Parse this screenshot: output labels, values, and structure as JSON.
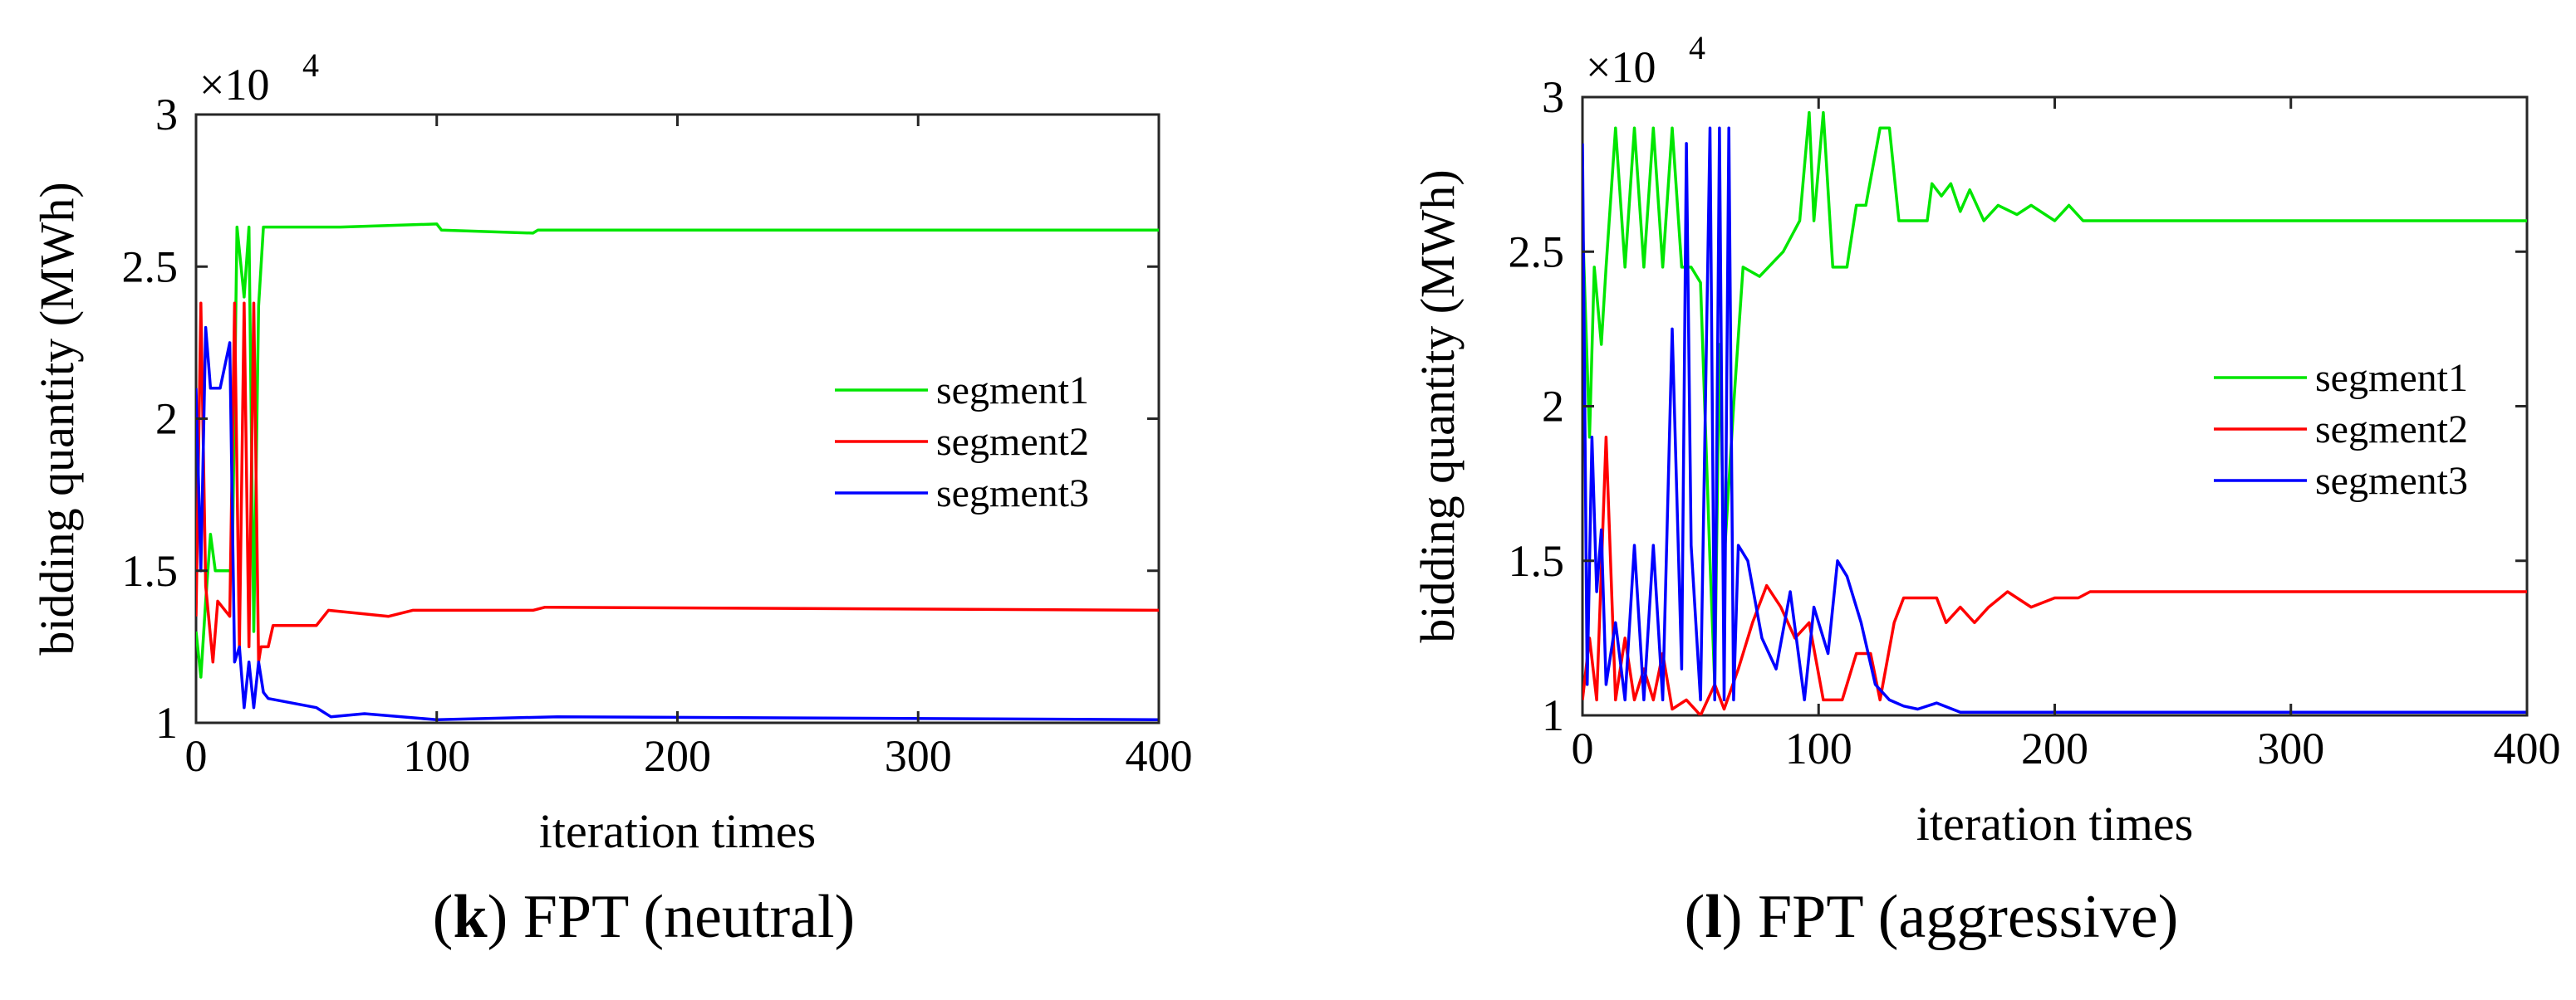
{
  "chart_data": [
    {
      "type": "line",
      "panel_id": "k",
      "panel_suffix": "FPT (neutral)",
      "xlabel": "iteration times",
      "ylabel": "bidding quantity (MWh)",
      "y_exponent_label": "×10",
      "y_exponent_power": "4",
      "xlim": [
        0,
        400
      ],
      "ylim": [
        1,
        3
      ],
      "xticks": [
        0,
        100,
        200,
        300,
        400
      ],
      "yticks": [
        1,
        1.5,
        2,
        2.5,
        3
      ],
      "xtick_labels": [
        "0",
        "100",
        "200",
        "300",
        "400"
      ],
      "ytick_labels": [
        "1",
        "1.5",
        "2",
        "2.5",
        "3"
      ],
      "legend_position": "center-right",
      "series": [
        {
          "name": "segment1",
          "color": "#00e600",
          "points": [
            [
              0,
              1.3
            ],
            [
              2,
              1.15
            ],
            [
              4,
              1.4
            ],
            [
              6,
              1.62
            ],
            [
              8,
              1.5
            ],
            [
              15,
              1.5
            ],
            [
              17,
              2.63
            ],
            [
              20,
              2.4
            ],
            [
              22,
              2.63
            ],
            [
              24,
              1.3
            ],
            [
              26,
              2.37
            ],
            [
              28,
              2.63
            ],
            [
              60,
              2.63
            ],
            [
              100,
              2.64
            ],
            [
              102,
              2.62
            ],
            [
              140,
              2.61
            ],
            [
              142,
              2.62
            ],
            [
              400,
              2.62
            ]
          ]
        },
        {
          "name": "segment2",
          "color": "#ff0000",
          "points": [
            [
              0,
              1.35
            ],
            [
              2,
              2.38
            ],
            [
              4,
              1.45
            ],
            [
              7,
              1.2
            ],
            [
              9,
              1.4
            ],
            [
              14,
              1.35
            ],
            [
              16,
              2.38
            ],
            [
              18,
              1.25
            ],
            [
              20,
              2.38
            ],
            [
              22,
              1.25
            ],
            [
              24,
              2.38
            ],
            [
              26,
              1.2
            ],
            [
              27,
              1.25
            ],
            [
              30,
              1.25
            ],
            [
              32,
              1.32
            ],
            [
              50,
              1.32
            ],
            [
              55,
              1.37
            ],
            [
              80,
              1.35
            ],
            [
              90,
              1.37
            ],
            [
              140,
              1.37
            ],
            [
              145,
              1.38
            ],
            [
              400,
              1.37
            ]
          ]
        },
        {
          "name": "segment3",
          "color": "#0000ff",
          "points": [
            [
              0,
              2.1
            ],
            [
              2,
              1.5
            ],
            [
              4,
              2.3
            ],
            [
              6,
              2.1
            ],
            [
              10,
              2.1
            ],
            [
              14,
              2.25
            ],
            [
              16,
              1.2
            ],
            [
              18,
              1.25
            ],
            [
              20,
              1.05
            ],
            [
              22,
              1.2
            ],
            [
              24,
              1.05
            ],
            [
              26,
              1.2
            ],
            [
              28,
              1.1
            ],
            [
              30,
              1.08
            ],
            [
              50,
              1.05
            ],
            [
              56,
              1.02
            ],
            [
              70,
              1.03
            ],
            [
              100,
              1.01
            ],
            [
              150,
              1.02
            ],
            [
              400,
              1.01
            ]
          ]
        }
      ]
    },
    {
      "type": "line",
      "panel_id": "l",
      "panel_suffix": "FPT (aggressive)",
      "xlabel": "iteration times",
      "ylabel": "bidding quantity (MWh)",
      "y_exponent_label": "×10",
      "y_exponent_power": "4",
      "xlim": [
        0,
        400
      ],
      "ylim": [
        1,
        3
      ],
      "xticks": [
        0,
        100,
        200,
        300,
        400
      ],
      "yticks": [
        1,
        1.5,
        2,
        2.5,
        3
      ],
      "xtick_labels": [
        "0",
        "100",
        "200",
        "300",
        "400"
      ],
      "ytick_labels": [
        "1",
        "1.5",
        "2",
        "2.5",
        "3"
      ],
      "legend_position": "center-right",
      "series": [
        {
          "name": "segment1",
          "color": "#00e600",
          "points": [
            [
              0,
              2.6
            ],
            [
              3,
              1.9
            ],
            [
              5,
              2.45
            ],
            [
              8,
              2.2
            ],
            [
              10,
              2.45
            ],
            [
              14,
              2.9
            ],
            [
              18,
              2.45
            ],
            [
              22,
              2.9
            ],
            [
              26,
              2.45
            ],
            [
              30,
              2.9
            ],
            [
              34,
              2.45
            ],
            [
              38,
              2.9
            ],
            [
              42,
              2.45
            ],
            [
              46,
              2.45
            ],
            [
              50,
              2.4
            ],
            [
              54,
              1.5
            ],
            [
              56,
              1.1
            ],
            [
              58,
              2.2
            ],
            [
              60,
              1.5
            ],
            [
              64,
              2.0
            ],
            [
              68,
              2.45
            ],
            [
              75,
              2.42
            ],
            [
              85,
              2.5
            ],
            [
              92,
              2.6
            ],
            [
              96,
              2.95
            ],
            [
              98,
              2.6
            ],
            [
              102,
              2.95
            ],
            [
              106,
              2.45
            ],
            [
              112,
              2.45
            ],
            [
              116,
              2.65
            ],
            [
              120,
              2.65
            ],
            [
              126,
              2.9
            ],
            [
              130,
              2.9
            ],
            [
              134,
              2.6
            ],
            [
              146,
              2.6
            ],
            [
              148,
              2.72
            ],
            [
              152,
              2.68
            ],
            [
              156,
              2.72
            ],
            [
              160,
              2.63
            ],
            [
              164,
              2.7
            ],
            [
              170,
              2.6
            ],
            [
              176,
              2.65
            ],
            [
              184,
              2.62
            ],
            [
              190,
              2.65
            ],
            [
              200,
              2.6
            ],
            [
              206,
              2.65
            ],
            [
              212,
              2.6
            ],
            [
              400,
              2.6
            ]
          ]
        },
        {
          "name": "segment2",
          "color": "#ff0000",
          "points": [
            [
              0,
              1.05
            ],
            [
              3,
              1.25
            ],
            [
              6,
              1.05
            ],
            [
              10,
              1.9
            ],
            [
              14,
              1.05
            ],
            [
              18,
              1.25
            ],
            [
              22,
              1.05
            ],
            [
              26,
              1.15
            ],
            [
              30,
              1.05
            ],
            [
              34,
              1.2
            ],
            [
              38,
              1.02
            ],
            [
              44,
              1.05
            ],
            [
              50,
              1.0
            ],
            [
              56,
              1.1
            ],
            [
              60,
              1.02
            ],
            [
              66,
              1.15
            ],
            [
              72,
              1.3
            ],
            [
              78,
              1.42
            ],
            [
              84,
              1.35
            ],
            [
              90,
              1.25
            ],
            [
              96,
              1.3
            ],
            [
              102,
              1.05
            ],
            [
              110,
              1.05
            ],
            [
              116,
              1.2
            ],
            [
              122,
              1.2
            ],
            [
              126,
              1.05
            ],
            [
              132,
              1.3
            ],
            [
              136,
              1.38
            ],
            [
              150,
              1.38
            ],
            [
              154,
              1.3
            ],
            [
              160,
              1.35
            ],
            [
              166,
              1.3
            ],
            [
              172,
              1.35
            ],
            [
              180,
              1.4
            ],
            [
              190,
              1.35
            ],
            [
              200,
              1.38
            ],
            [
              210,
              1.38
            ],
            [
              215,
              1.4
            ],
            [
              400,
              1.4
            ]
          ]
        },
        {
          "name": "segment3",
          "color": "#0000ff",
          "points": [
            [
              0,
              2.85
            ],
            [
              2,
              1.1
            ],
            [
              4,
              1.9
            ],
            [
              6,
              1.4
            ],
            [
              8,
              1.6
            ],
            [
              10,
              1.1
            ],
            [
              14,
              1.3
            ],
            [
              18,
              1.05
            ],
            [
              22,
              1.55
            ],
            [
              26,
              1.05
            ],
            [
              30,
              1.55
            ],
            [
              34,
              1.05
            ],
            [
              38,
              2.25
            ],
            [
              42,
              1.15
            ],
            [
              44,
              2.85
            ],
            [
              46,
              1.55
            ],
            [
              50,
              1.05
            ],
            [
              54,
              2.9
            ],
            [
              56,
              1.05
            ],
            [
              58,
              2.9
            ],
            [
              60,
              1.05
            ],
            [
              62,
              2.9
            ],
            [
              64,
              1.05
            ],
            [
              66,
              1.55
            ],
            [
              70,
              1.5
            ],
            [
              76,
              1.25
            ],
            [
              82,
              1.15
            ],
            [
              88,
              1.4
            ],
            [
              94,
              1.05
            ],
            [
              98,
              1.35
            ],
            [
              104,
              1.2
            ],
            [
              108,
              1.5
            ],
            [
              112,
              1.45
            ],
            [
              118,
              1.3
            ],
            [
              124,
              1.1
            ],
            [
              130,
              1.05
            ],
            [
              136,
              1.03
            ],
            [
              142,
              1.02
            ],
            [
              150,
              1.04
            ],
            [
              160,
              1.01
            ],
            [
              400,
              1.01
            ]
          ]
        }
      ]
    }
  ]
}
